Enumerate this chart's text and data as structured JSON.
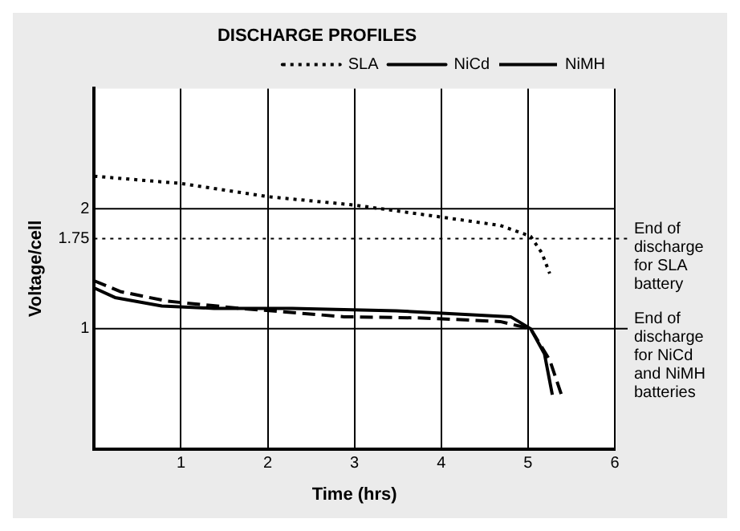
{
  "chart_data": {
    "type": "line",
    "title": "DISCHARGE PROFILES",
    "xlabel": "Time (hrs)",
    "ylabel": "Voltage/cell",
    "xlim": [
      0,
      6
    ],
    "xticks": [
      1,
      2,
      3,
      4,
      5,
      6
    ],
    "ylim": [
      0,
      3
    ],
    "yticks": [
      1,
      1.75,
      2
    ],
    "grid": "x",
    "legend": "top right",
    "marker": "none",
    "series": [
      {
        "name": "SLA",
        "color": "#000000",
        "line_style": "dotted",
        "x": [
          0,
          1,
          2,
          3,
          4,
          4.68,
          5.03,
          5.16,
          5.25
        ],
        "values": [
          2.27,
          2.21,
          2.1,
          2.03,
          1.93,
          1.86,
          1.77,
          1.63,
          1.46
        ]
      },
      {
        "name": "NiCd",
        "color": "#000000",
        "line_style": "solid",
        "x": [
          0,
          0.24,
          0.78,
          1.38,
          2.28,
          3.48,
          4.8,
          5.03,
          5.19,
          5.28
        ],
        "values": [
          1.34,
          1.26,
          1.19,
          1.17,
          1.17,
          1.15,
          1.1,
          1.0,
          0.79,
          0.45
        ]
      },
      {
        "name": "NiMH",
        "color": "#000000",
        "line_style": "dashed",
        "x": [
          0,
          0.3,
          0.84,
          1.68,
          2.88,
          3.78,
          4.68,
          5.03,
          5.25,
          5.39
        ],
        "values": [
          1.4,
          1.31,
          1.23,
          1.17,
          1.1,
          1.09,
          1.06,
          1.0,
          0.74,
          0.44
        ]
      }
    ],
    "ref_lines": [
      {
        "axis": "y",
        "value": 2,
        "label": null,
        "color": "#000000",
        "line_style": "solid"
      },
      {
        "axis": "y",
        "value": 1.75,
        "label": "End of discharge for SLA battery",
        "color": "#000000",
        "line_style": "dotted"
      },
      {
        "axis": "y",
        "value": 1,
        "label": "End of discharge for NiCd and NiMH batteries",
        "color": "#000000",
        "line_style": "solid"
      }
    ]
  }
}
